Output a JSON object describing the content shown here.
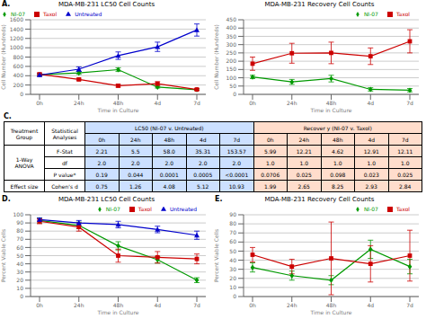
{
  "chart_data": [
    {
      "type": "line",
      "title": "MDA-MB-231 LC50 Cell Counts",
      "annotations": [
        "A."
      ],
      "xlabel": "Time in Culture",
      "ylabel": "Cell Number (Hundreds)",
      "categories": [
        "0h",
        "24h",
        "48h",
        "4d",
        "7d"
      ],
      "ylim": [
        0,
        1600
      ],
      "yticks": [
        0,
        200,
        400,
        600,
        800,
        1000,
        1200,
        1400,
        1600
      ],
      "grid": true,
      "legend": "upper left",
      "series": [
        {
          "name": "NI-07",
          "color": "#009900",
          "marker": "diamond",
          "values": [
            420,
            460,
            530,
            155,
            100
          ],
          "yerr": [
            20,
            30,
            40,
            20,
            15
          ]
        },
        {
          "name": "Taxol",
          "color": "#cc0000",
          "marker": "square",
          "values": [
            430,
            320,
            185,
            230,
            105
          ],
          "yerr": [
            30,
            25,
            30,
            40,
            20
          ]
        },
        {
          "name": "Untreated",
          "color": "#0000cc",
          "marker": "triangle",
          "values": [
            415,
            540,
            830,
            1020,
            1380
          ],
          "yerr": [
            25,
            50,
            80,
            100,
            130
          ]
        }
      ]
    },
    {
      "type": "line",
      "title": "MDA-MB-231 Recovery Cell Counts",
      "xlabel": "Time in Culture",
      "ylabel": "Cell Number (Hundreds)",
      "categories": [
        "0h",
        "24h",
        "48h",
        "4d",
        "7d"
      ],
      "ylim": [
        0,
        450
      ],
      "yticks": [
        0,
        50,
        100,
        150,
        200,
        250,
        300,
        350,
        400,
        450
      ],
      "grid": true,
      "legend": "upper right",
      "series": [
        {
          "name": "NI-07",
          "color": "#009900",
          "marker": "diamond",
          "values": [
            105,
            75,
            95,
            30,
            25
          ],
          "yerr": [
            10,
            15,
            20,
            10,
            10
          ]
        },
        {
          "name": "Taxol",
          "color": "#cc0000",
          "marker": "square",
          "values": [
            185,
            248,
            250,
            230,
            320
          ],
          "yerr": [
            40,
            60,
            65,
            50,
            70
          ]
        }
      ]
    },
    {
      "type": "table",
      "annotations": [
        "C."
      ],
      "header": [
        "Treatment\nGroup",
        "Statistical\nAnalyses"
      ],
      "groups": [
        {
          "name": "LC50 (NI-07 v. Untreated)",
          "color": "#cce0ff",
          "columns": [
            "0h",
            "24h",
            "48h",
            "4d",
            "7d"
          ]
        },
        {
          "name": "Recover y (NI-07 v. Taxol)",
          "color": "#ffddcc",
          "columns": [
            "0h",
            "24h",
            "48h",
            "4d",
            "7d"
          ]
        }
      ],
      "row_groups": [
        {
          "name": "1-Way\nANOVA",
          "rows": [
            {
              "name": "F-Stat",
              "values": [
                "2.21",
                "5.5",
                "58.0",
                "35.31",
                "153.57",
                "5.99",
                "12.21",
                "4.62",
                "12.91",
                "12.11"
              ]
            },
            {
              "name": "df",
              "values": [
                "2.0",
                "2.0",
                "2.0",
                "2.0",
                "2.0",
                "1.0",
                "1.0",
                "1.0",
                "1.0",
                "1.0"
              ]
            },
            {
              "name": "P value*",
              "values": [
                "0.19",
                "0.044",
                "0.0001",
                "0.0005",
                "<0.0001",
                "0.0706",
                "0.025",
                "0.098",
                "0.023",
                "0.025"
              ]
            }
          ]
        },
        {
          "name": "Effect size",
          "rows": [
            {
              "name": "Cohen's d",
              "values": [
                "0.75",
                "1.26",
                "4.08",
                "5.12",
                "10.93",
                "1.99",
                "2.65",
                "8.25",
                "2.93",
                "2.84"
              ]
            }
          ]
        }
      ]
    },
    {
      "type": "line",
      "title": "MDA-MB-231 LC50 Cell Counts",
      "annotations": [
        "D."
      ],
      "xlabel": "Time in Culture",
      "ylabel": "Percent Viable Cells",
      "categories": [
        "0h",
        "24h",
        "48h",
        "4d",
        "7d"
      ],
      "ylim": [
        0,
        100
      ],
      "yticks": [
        0,
        10,
        20,
        30,
        40,
        50,
        60,
        70,
        80,
        90,
        100
      ],
      "grid": true,
      "legend": "upper right",
      "series": [
        {
          "name": "NI-07",
          "color": "#009900",
          "marker": "diamond",
          "values": [
            93,
            87,
            62,
            45,
            20
          ],
          "yerr": [
            3,
            4,
            5,
            4,
            3
          ]
        },
        {
          "name": "Taxol",
          "color": "#cc0000",
          "marker": "square",
          "values": [
            92,
            85,
            50,
            48,
            46
          ],
          "yerr": [
            3,
            5,
            8,
            7,
            6
          ]
        },
        {
          "name": "Untreated",
          "color": "#0000cc",
          "marker": "triangle",
          "values": [
            94,
            90,
            88,
            82,
            75
          ],
          "yerr": [
            2,
            3,
            4,
            4,
            5
          ]
        }
      ]
    },
    {
      "type": "line",
      "title": "MDA-MB-231 Recovery Cell Counts",
      "annotations": [
        "E."
      ],
      "xlabel": "Time in Culture",
      "ylabel": "Percent Viable Cells",
      "categories": [
        "0h",
        "24h",
        "48h",
        "4d",
        "7d"
      ],
      "ylim": [
        0,
        90
      ],
      "yticks": [
        0,
        10,
        20,
        30,
        40,
        50,
        60,
        70,
        80,
        90
      ],
      "grid": true,
      "legend": "upper right",
      "series": [
        {
          "name": "NI-07",
          "color": "#009900",
          "marker": "diamond",
          "values": [
            32,
            23,
            18,
            52,
            33
          ],
          "yerr": [
            5,
            5,
            5,
            10,
            8
          ]
        },
        {
          "name": "Taxol",
          "color": "#cc0000",
          "marker": "square",
          "values": [
            46,
            33,
            42,
            36,
            45
          ],
          "yerr": [
            8,
            8,
            40,
            20,
            28
          ]
        }
      ]
    }
  ]
}
